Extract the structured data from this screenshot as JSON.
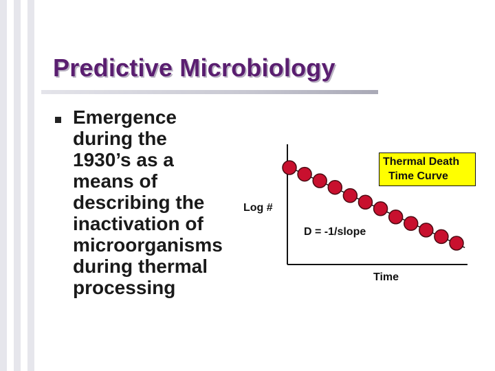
{
  "slide": {
    "title": "Predictive Microbiology",
    "bullet_lines": [
      "Emergence",
      "during the",
      "1930’s as a",
      "means of",
      "describing the",
      "inactivation of",
      "microorganisms",
      "during thermal",
      "processing"
    ]
  },
  "chart_data": {
    "type": "scatter",
    "title": "",
    "legend_box": [
      "Thermal Death",
      "Time Curve"
    ],
    "xlabel": "Time",
    "ylabel": "Log #",
    "annotation": "D = -1/slope",
    "x": [
      1,
      2,
      3,
      4,
      5,
      6,
      7,
      8,
      9,
      10,
      11,
      12
    ],
    "y": [
      9.3,
      8.9,
      8.5,
      8.1,
      7.6,
      7.2,
      6.8,
      6.3,
      5.9,
      5.5,
      5.1,
      4.7
    ],
    "fit_line": true,
    "axes_numeric": false,
    "colors": {
      "point": "#c8102e",
      "title": "#5a1e70",
      "legend_bg": "#ffff00"
    }
  }
}
